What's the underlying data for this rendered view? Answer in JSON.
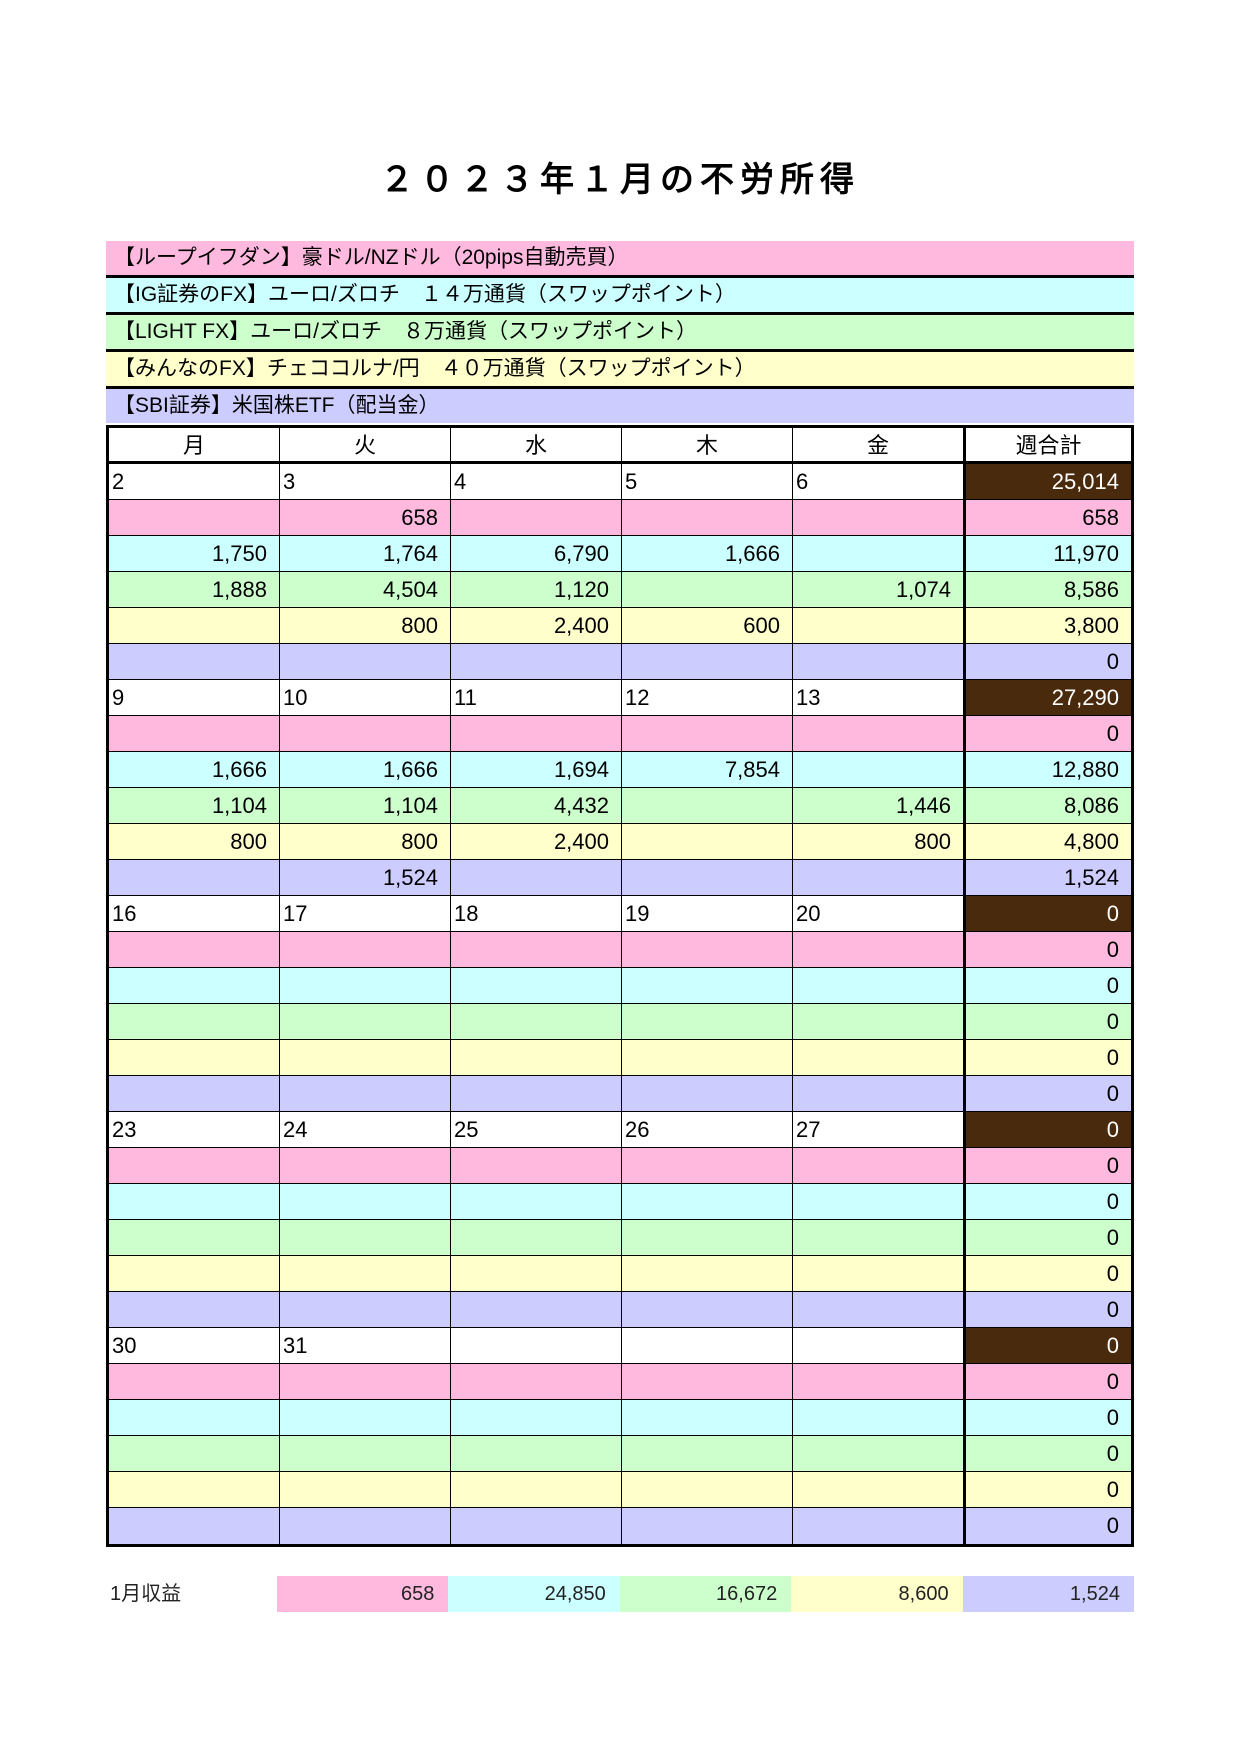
{
  "title": "２０２３年１月の不労所得",
  "colors": {
    "pink": "#ffb8de",
    "cyan": "#ccffff",
    "green": "#ccffcc",
    "yellow": "#ffffcc",
    "lavender": "#ccccff",
    "week_total": "#4a2a0c"
  },
  "legend": [
    "【ループイフダン】豪ドル/NZドル（20pips自動売買）",
    "【IG証券のFX】ユーロ/ズロチ　１４万通貨（スワップポイント）",
    "【LIGHT FX】ユーロ/ズロチ　８万通貨（スワップポイント）",
    "【みんなのFX】チェココルナ/円　４０万通貨（スワップポイント）",
    "【SBI証券】米国株ETF（配当金）"
  ],
  "headers": [
    "月",
    "火",
    "水",
    "木",
    "金",
    "週合計"
  ],
  "weeks": [
    {
      "dates": [
        "2",
        "3",
        "4",
        "5",
        "6"
      ],
      "total": "25,014",
      "rows": [
        {
          "values": [
            "",
            "658",
            "",
            "",
            ""
          ],
          "total": "658"
        },
        {
          "values": [
            "1,750",
            "1,764",
            "6,790",
            "1,666",
            ""
          ],
          "total": "11,970"
        },
        {
          "values": [
            "1,888",
            "4,504",
            "1,120",
            "",
            "1,074"
          ],
          "total": "8,586"
        },
        {
          "values": [
            "",
            "800",
            "2,400",
            "600",
            ""
          ],
          "total": "3,800"
        },
        {
          "values": [
            "",
            "",
            "",
            "",
            ""
          ],
          "total": "0"
        }
      ]
    },
    {
      "dates": [
        "9",
        "10",
        "11",
        "12",
        "13"
      ],
      "total": "27,290",
      "rows": [
        {
          "values": [
            "",
            "",
            "",
            "",
            ""
          ],
          "total": "0"
        },
        {
          "values": [
            "1,666",
            "1,666",
            "1,694",
            "7,854",
            ""
          ],
          "total": "12,880"
        },
        {
          "values": [
            "1,104",
            "1,104",
            "4,432",
            "",
            "1,446"
          ],
          "total": "8,086"
        },
        {
          "values": [
            "800",
            "800",
            "2,400",
            "",
            "800"
          ],
          "total": "4,800"
        },
        {
          "values": [
            "",
            "1,524",
            "",
            "",
            ""
          ],
          "total": "1,524"
        }
      ]
    },
    {
      "dates": [
        "16",
        "17",
        "18",
        "19",
        "20"
      ],
      "total": "0",
      "rows": [
        {
          "values": [
            "",
            "",
            "",
            "",
            ""
          ],
          "total": "0"
        },
        {
          "values": [
            "",
            "",
            "",
            "",
            ""
          ],
          "total": "0"
        },
        {
          "values": [
            "",
            "",
            "",
            "",
            ""
          ],
          "total": "0"
        },
        {
          "values": [
            "",
            "",
            "",
            "",
            ""
          ],
          "total": "0"
        },
        {
          "values": [
            "",
            "",
            "",
            "",
            ""
          ],
          "total": "0"
        }
      ]
    },
    {
      "dates": [
        "23",
        "24",
        "25",
        "26",
        "27"
      ],
      "total": "0",
      "rows": [
        {
          "values": [
            "",
            "",
            "",
            "",
            ""
          ],
          "total": "0"
        },
        {
          "values": [
            "",
            "",
            "",
            "",
            ""
          ],
          "total": "0"
        },
        {
          "values": [
            "",
            "",
            "",
            "",
            ""
          ],
          "total": "0"
        },
        {
          "values": [
            "",
            "",
            "",
            "",
            ""
          ],
          "total": "0"
        },
        {
          "values": [
            "",
            "",
            "",
            "",
            ""
          ],
          "total": "0"
        }
      ]
    },
    {
      "dates": [
        "30",
        "31",
        "",
        "",
        ""
      ],
      "total": "0",
      "rows": [
        {
          "values": [
            "",
            "",
            "",
            "",
            ""
          ],
          "total": "0"
        },
        {
          "values": [
            "",
            "",
            "",
            "",
            ""
          ],
          "total": "0"
        },
        {
          "values": [
            "",
            "",
            "",
            "",
            ""
          ],
          "total": "0"
        },
        {
          "values": [
            "",
            "",
            "",
            "",
            ""
          ],
          "total": "0"
        },
        {
          "values": [
            "",
            "",
            "",
            "",
            ""
          ],
          "total": "0"
        }
      ]
    }
  ],
  "summary": {
    "label": "1月収益",
    "values": [
      "658",
      "24,850",
      "16,672",
      "8,600",
      "1,524"
    ]
  }
}
